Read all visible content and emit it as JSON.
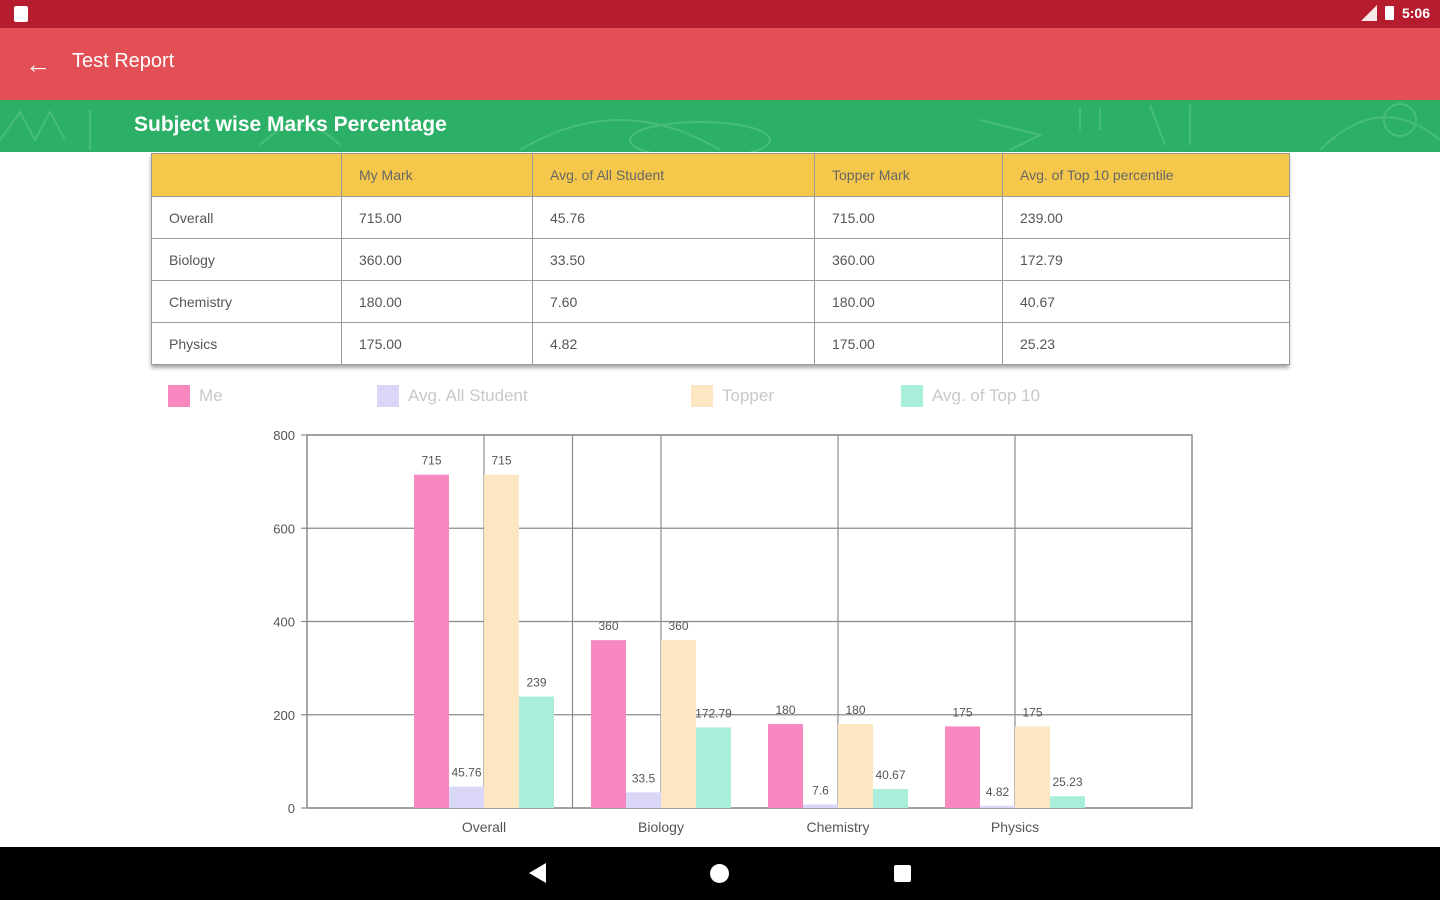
{
  "status_bar": {
    "time": "5:06"
  },
  "app_bar": {
    "title": "Test Report"
  },
  "section": {
    "title": "Subject wise Marks Percentage"
  },
  "table": {
    "headers": [
      "",
      "My Mark",
      "Avg. of All Student",
      "Topper Mark",
      "Avg. of Top 10 percentile"
    ],
    "rows": [
      [
        "Overall",
        "715.00",
        "45.76",
        "715.00",
        "239.00"
      ],
      [
        "Biology",
        "360.00",
        "33.50",
        "360.00",
        "172.79"
      ],
      [
        "Chemistry",
        "180.00",
        "7.60",
        "180.00",
        "40.67"
      ],
      [
        "Physics",
        "175.00",
        "4.82",
        "175.00",
        "25.23"
      ]
    ]
  },
  "legend": [
    {
      "label": "Me",
      "color": "#f788c0"
    },
    {
      "label": "Avg. All Student",
      "color": "#d9d6f8"
    },
    {
      "label": "Topper",
      "color": "#fde7c2"
    },
    {
      "label": "Avg. of Top 10",
      "color": "#a9eedb"
    }
  ],
  "chart_data": {
    "type": "bar",
    "categories": [
      "Overall",
      "Biology",
      "Chemistry",
      "Physics"
    ],
    "ylim": [
      0,
      800
    ],
    "yticks": [
      0,
      200,
      400,
      600,
      800
    ],
    "grid": true,
    "legend_position": "top-left",
    "series": [
      {
        "name": "Me",
        "color": "#f788c0",
        "values": [
          715,
          360,
          180,
          175
        ],
        "labels": [
          "715",
          "360",
          "180",
          "175"
        ]
      },
      {
        "name": "Avg. All Student",
        "color": "#d9d6f8",
        "values": [
          45.76,
          33.5,
          7.6,
          4.82
        ],
        "labels": [
          "45.76",
          "33.5",
          "7.6",
          "4.82"
        ]
      },
      {
        "name": "Topper",
        "color": "#fde7c2",
        "values": [
          715,
          360,
          180,
          175
        ],
        "labels": [
          "715",
          "360",
          "180",
          "175"
        ]
      },
      {
        "name": "Avg. of Top 10",
        "color": "#a9eedb",
        "values": [
          239,
          172.79,
          40.67,
          25.23
        ],
        "labels": [
          "239",
          "172.79",
          "40.67",
          "25.23"
        ]
      }
    ]
  }
}
